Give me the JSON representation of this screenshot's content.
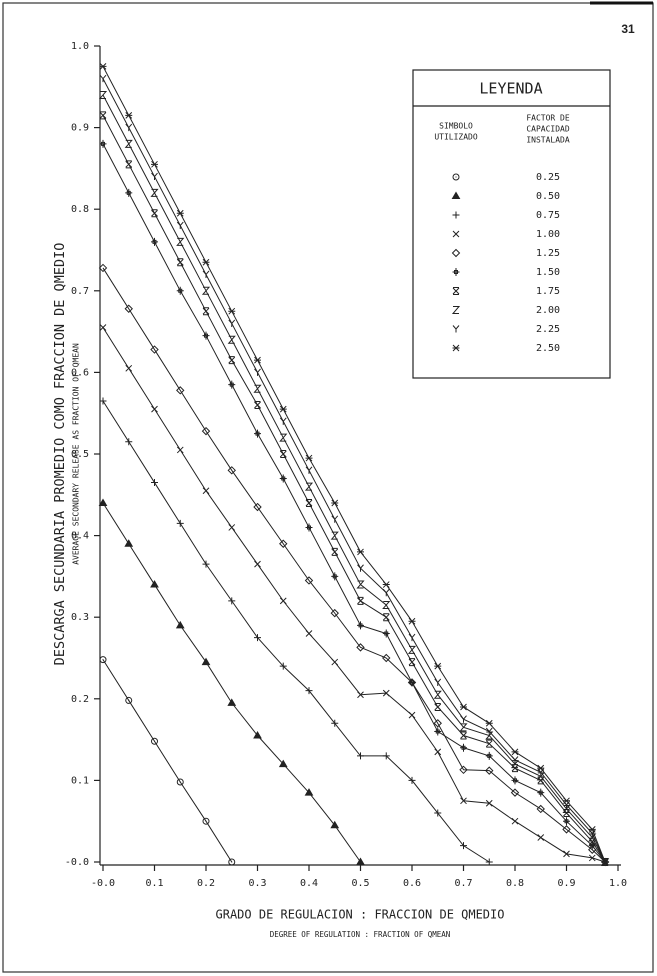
{
  "page_number": "31",
  "chart_data": {
    "type": "line",
    "y_label": "DESCARGA SECUNDARIA PROMEDIO COMO FRACCION DE QMEDIO",
    "y_sublabel": "AVERAGE SECONDARY RELEASE AS FRACTION OF QMEAN",
    "x_label": "GRADO DE REGULACION : FRACCION DE QMEDIO",
    "x_sublabel": "DEGREE OF REGULATION : FRACTION OF QMEAN",
    "legend_title": "LEYENDA",
    "legend_symbol_header": [
      "SIMBOLO",
      "UTILIZADO"
    ],
    "legend_value_header": [
      "FACTOR DE",
      "CAPACIDAD",
      "INSTALADA"
    ],
    "x": [
      0,
      0.05,
      0.1,
      0.15,
      0.2,
      0.25,
      0.3,
      0.35,
      0.4,
      0.45,
      0.5,
      0.55,
      0.6,
      0.65,
      0.7,
      0.75,
      0.8,
      0.85,
      0.9,
      0.95,
      0.975
    ],
    "xlim": [
      0,
      1
    ],
    "ylim": [
      0,
      1
    ],
    "xticks": [
      {
        "value": 0,
        "label": "-0.0"
      },
      0.1,
      0.2,
      0.3,
      0.4,
      0.5,
      0.6,
      0.7,
      0.8,
      0.9,
      {
        "value": 1,
        "label": "1.0"
      }
    ],
    "yticks": [
      {
        "value": 0,
        "label": "-0.0"
      },
      0.1,
      0.2,
      0.3,
      0.4,
      0.5,
      0.6,
      0.7,
      0.8,
      0.9,
      {
        "value": 1,
        "label": "1.0"
      }
    ],
    "series": [
      {
        "name": "0.25",
        "marker": "circle",
        "color": "#222",
        "values": [
          0.248,
          0.198,
          0.148,
          0.098,
          0.05,
          0,
          null,
          null,
          null,
          null,
          null,
          null,
          null,
          null,
          null,
          null,
          null,
          null,
          null,
          null,
          null
        ]
      },
      {
        "name": "0.50",
        "marker": "triangle",
        "color": "#222",
        "values": [
          0.44,
          0.39,
          0.34,
          0.29,
          0.245,
          0.195,
          0.155,
          0.12,
          0.085,
          0.045,
          0,
          null,
          null,
          null,
          null,
          null,
          null,
          null,
          null,
          null,
          null
        ]
      },
      {
        "name": "0.75",
        "marker": "plus",
        "color": "#222",
        "values": [
          0.565,
          0.515,
          0.465,
          0.415,
          0.365,
          0.32,
          0.275,
          0.24,
          0.21,
          0.17,
          0.13,
          0.13,
          0.1,
          0.06,
          0.02,
          0,
          null,
          null,
          null,
          null,
          null
        ]
      },
      {
        "name": "1.00",
        "marker": "cross",
        "color": "#222",
        "values": [
          0.655,
          0.605,
          0.555,
          0.505,
          0.455,
          0.41,
          0.365,
          0.32,
          0.28,
          0.245,
          0.205,
          0.207,
          0.18,
          0.135,
          0.075,
          0.072,
          0.05,
          0.03,
          0.01,
          0.005,
          0
        ]
      },
      {
        "name": "1.25",
        "marker": "diamond",
        "color": "#222",
        "values": [
          0.728,
          0.678,
          0.628,
          0.578,
          0.528,
          0.48,
          0.435,
          0.39,
          0.345,
          0.305,
          0.263,
          0.25,
          0.22,
          0.17,
          0.113,
          0.112,
          0.085,
          0.065,
          0.04,
          0.015,
          0
        ]
      },
      {
        "name": "1.50",
        "marker": "star",
        "color": "#222",
        "values": [
          0.88,
          0.82,
          0.76,
          0.7,
          0.645,
          0.585,
          0.525,
          0.47,
          0.41,
          0.35,
          0.29,
          0.28,
          0.22,
          0.16,
          0.14,
          0.13,
          0.1,
          0.085,
          0.05,
          0.02,
          0
        ]
      },
      {
        "name": "1.75",
        "marker": "xbar",
        "color": "#222",
        "values": [
          0.915,
          0.855,
          0.795,
          0.735,
          0.675,
          0.615,
          0.56,
          0.5,
          0.44,
          0.38,
          0.32,
          0.3,
          0.245,
          0.19,
          0.155,
          0.145,
          0.115,
          0.1,
          0.06,
          0.025,
          0
        ]
      },
      {
        "name": "2.00",
        "marker": "z",
        "color": "#222",
        "values": [
          0.94,
          0.88,
          0.82,
          0.76,
          0.7,
          0.64,
          0.58,
          0.52,
          0.46,
          0.4,
          0.34,
          0.315,
          0.26,
          0.205,
          0.165,
          0.155,
          0.12,
          0.105,
          0.065,
          0.03,
          0
        ]
      },
      {
        "name": "2.25",
        "marker": "y",
        "color": "#222",
        "values": [
          0.96,
          0.9,
          0.84,
          0.78,
          0.72,
          0.66,
          0.6,
          0.54,
          0.48,
          0.42,
          0.36,
          0.33,
          0.275,
          0.22,
          0.175,
          0.16,
          0.125,
          0.11,
          0.07,
          0.035,
          0
        ]
      },
      {
        "name": "2.50",
        "marker": "asterisk",
        "color": "#222",
        "values": [
          0.975,
          0.915,
          0.855,
          0.795,
          0.735,
          0.675,
          0.615,
          0.555,
          0.495,
          0.44,
          0.38,
          0.34,
          0.295,
          0.24,
          0.19,
          0.17,
          0.135,
          0.115,
          0.075,
          0.04,
          0
        ]
      }
    ]
  }
}
